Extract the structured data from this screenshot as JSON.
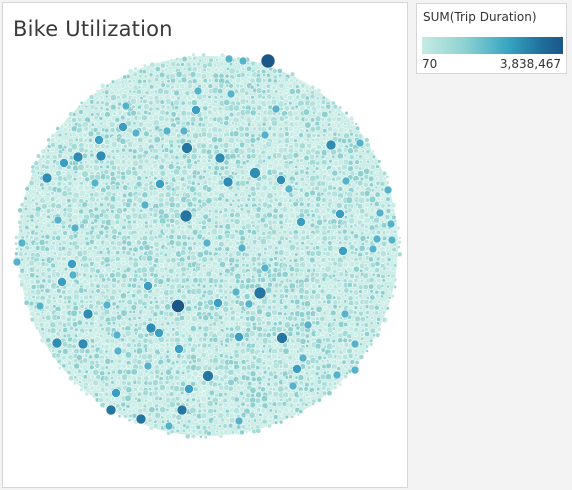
{
  "title": "Bike Utilization",
  "legend": {
    "title": "SUM(Trip Duration)",
    "min_label": "70",
    "max_label": "3,838,467",
    "colors": [
      "#c6ebe4",
      "#8fd2d3",
      "#39a7c2",
      "#1f6e9c",
      "#1b5786"
    ]
  },
  "chart_data": {
    "type": "packed bubble",
    "measure": "SUM(Trip Duration)",
    "color_range": [
      70,
      3838467
    ],
    "fill_colors": [
      "#c8ece6",
      "#b7e3de",
      "#a4dbd6",
      "#8ed0cf"
    ],
    "dark_colors": [
      "#1b5786",
      "#24759f",
      "#2f8db3",
      "#3a9ec2",
      "#55b2cb"
    ]
  }
}
